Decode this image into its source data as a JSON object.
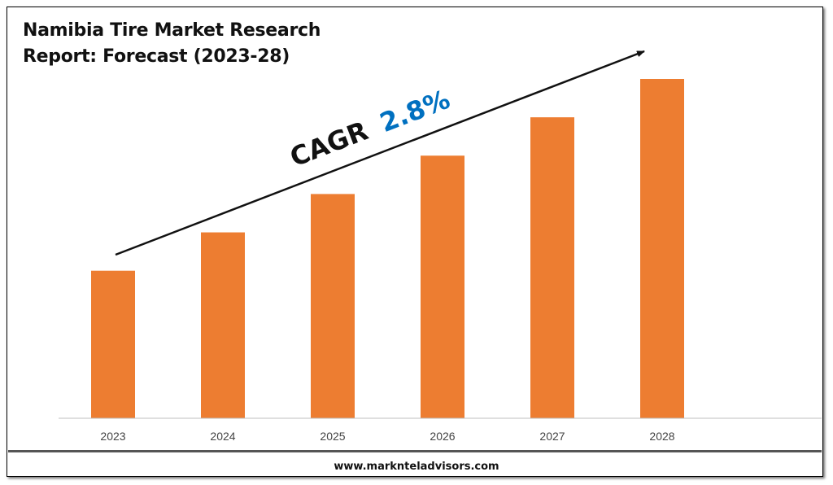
{
  "title_lines": [
    "Namibia Tire Market Research",
    "Report: Forecast (2023-28)"
  ],
  "annotation": {
    "prefix": "CAGR",
    "value": "2.8%"
  },
  "footer": "www.marknteladvisors.com",
  "colors": {
    "bar": "#ED7D31",
    "cagr_value": "#0070C0",
    "text": "#111111"
  },
  "chart_data": {
    "type": "bar",
    "categories": [
      "2023",
      "2024",
      "2025",
      "2026",
      "2027",
      "2028"
    ],
    "values": [
      100,
      126,
      152,
      178,
      204,
      230
    ],
    "value_scale": "relative (no axis values printed)",
    "ylim": [
      0,
      260
    ],
    "grid": false,
    "legend": "none"
  }
}
